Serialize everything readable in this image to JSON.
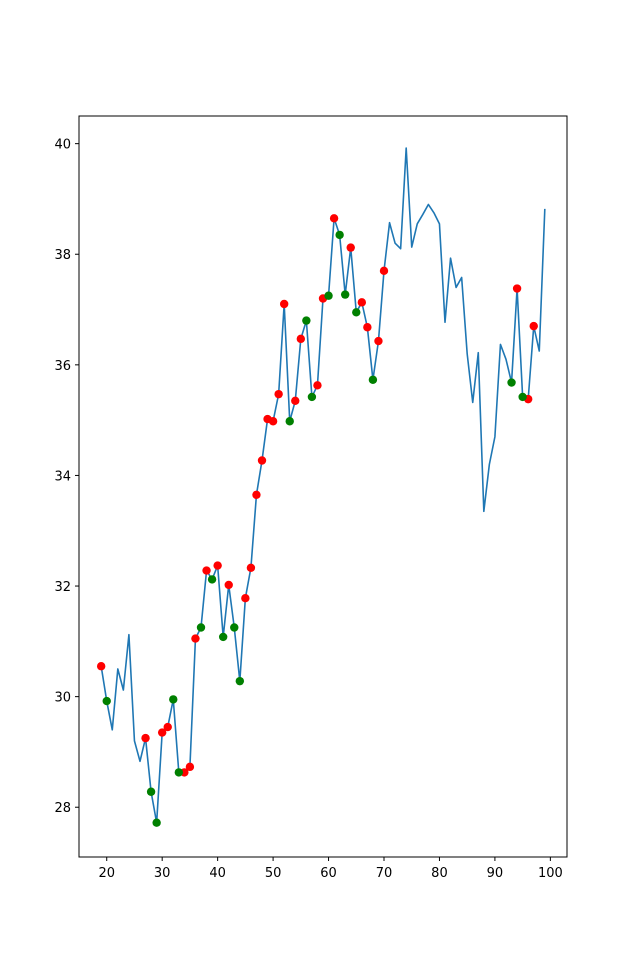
{
  "chart_data": {
    "type": "line",
    "title": "",
    "xlabel": "",
    "ylabel": "",
    "xlim": [
      15,
      103
    ],
    "ylim": [
      27.1,
      40.5
    ],
    "xticks": [
      20,
      30,
      40,
      50,
      60,
      70,
      80,
      90,
      100
    ],
    "yticks": [
      28,
      30,
      32,
      34,
      36,
      38,
      40
    ],
    "grid": false,
    "line_color": "#1f77b4",
    "series": [
      {
        "x": [
          19,
          20,
          21,
          22,
          23,
          24,
          25,
          26,
          27,
          28,
          29,
          30,
          31,
          32,
          33,
          34,
          35,
          36,
          37,
          38,
          39,
          40,
          41,
          42,
          43,
          44,
          45,
          46,
          47,
          48,
          49,
          50,
          51,
          52,
          53,
          54,
          55,
          56,
          57,
          58,
          59,
          60,
          61,
          62,
          63,
          64,
          65,
          66,
          67,
          68,
          69,
          70,
          71,
          72,
          73,
          74,
          75,
          76,
          77,
          78,
          79,
          80,
          81,
          82,
          83,
          84,
          85,
          86,
          87,
          88,
          89,
          90,
          91,
          92,
          93,
          94,
          95,
          96,
          97,
          98,
          99
        ],
        "values": [
          30.55,
          29.92,
          29.4,
          30.5,
          30.12,
          31.12,
          29.2,
          28.83,
          29.25,
          28.28,
          27.72,
          29.35,
          29.45,
          29.95,
          28.63,
          28.63,
          28.73,
          31.05,
          31.25,
          32.28,
          32.12,
          32.37,
          31.08,
          32.02,
          31.25,
          30.28,
          31.78,
          32.33,
          33.65,
          34.27,
          35.02,
          34.98,
          35.47,
          37.1,
          34.98,
          35.35,
          36.47,
          36.8,
          35.42,
          35.63,
          37.2,
          37.25,
          38.65,
          38.35,
          37.27,
          38.12,
          36.95,
          37.13,
          36.68,
          35.73,
          36.43,
          37.7,
          38.57,
          38.2,
          38.1,
          39.92,
          38.13,
          38.55,
          38.72,
          38.9,
          38.75,
          38.55,
          36.77,
          37.93,
          37.4,
          37.58,
          36.2,
          35.32,
          36.22,
          33.35,
          34.2,
          34.7,
          36.37,
          36.1,
          35.68,
          37.38,
          35.42,
          35.38,
          36.7,
          36.25,
          38.82
        ]
      }
    ],
    "markers": [
      {
        "name": "red",
        "color": "#ff0000",
        "x": [
          19,
          27,
          30,
          31,
          34,
          35,
          36,
          38,
          40,
          42,
          45,
          46,
          47,
          48,
          49,
          50,
          51,
          52,
          54,
          55,
          58,
          59,
          61,
          64,
          66,
          67,
          69,
          70,
          94,
          96,
          97
        ],
        "values": [
          30.55,
          29.25,
          29.35,
          29.45,
          28.63,
          28.73,
          31.05,
          32.28,
          32.37,
          32.02,
          31.78,
          32.33,
          33.65,
          34.27,
          35.02,
          34.98,
          35.47,
          37.1,
          35.35,
          36.47,
          35.63,
          37.2,
          38.65,
          38.12,
          37.13,
          36.68,
          36.43,
          37.7,
          37.38,
          35.38,
          36.7
        ]
      },
      {
        "name": "green",
        "color": "#008000",
        "x": [
          20,
          28,
          29,
          32,
          33,
          37,
          39,
          41,
          43,
          44,
          53,
          56,
          57,
          60,
          62,
          63,
          65,
          68,
          93,
          95
        ],
        "values": [
          29.92,
          28.28,
          27.72,
          29.95,
          28.63,
          31.25,
          32.12,
          31.08,
          31.25,
          30.28,
          34.98,
          36.8,
          35.42,
          37.25,
          38.35,
          37.27,
          36.95,
          35.73,
          35.68,
          35.42
        ]
      }
    ]
  }
}
